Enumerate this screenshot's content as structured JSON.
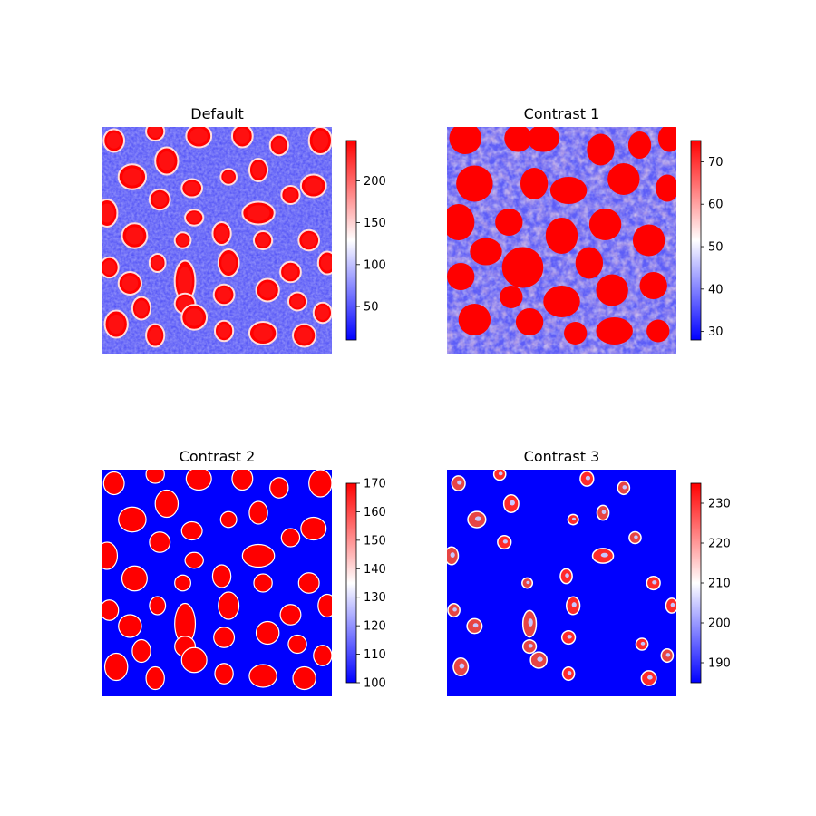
{
  "chart_data": [
    {
      "type": "heatmap",
      "title": "Default",
      "colormap": "bwr",
      "colorbar": {
        "range": [
          10,
          248
        ],
        "ticks": [
          50,
          100,
          150,
          200
        ]
      },
      "axes_visible": false
    },
    {
      "type": "heatmap",
      "title": "Contrast 1",
      "colormap": "bwr",
      "colorbar": {
        "range": [
          28,
          75
        ],
        "ticks": [
          30,
          40,
          50,
          60,
          70
        ]
      },
      "axes_visible": false
    },
    {
      "type": "heatmap",
      "title": "Contrast 2",
      "colormap": "bwr",
      "colorbar": {
        "range": [
          100,
          170
        ],
        "ticks": [
          100,
          110,
          120,
          130,
          140,
          150,
          160,
          170
        ]
      },
      "axes_visible": false
    },
    {
      "type": "heatmap",
      "title": "Contrast 3",
      "colormap": "bwr",
      "colorbar": {
        "range": [
          185,
          235
        ],
        "ticks": [
          190,
          200,
          210,
          220,
          230
        ]
      },
      "axes_visible": false
    }
  ],
  "colors": {
    "low": "#0000ff",
    "mid": "#ffffff",
    "high": "#ff0000"
  }
}
